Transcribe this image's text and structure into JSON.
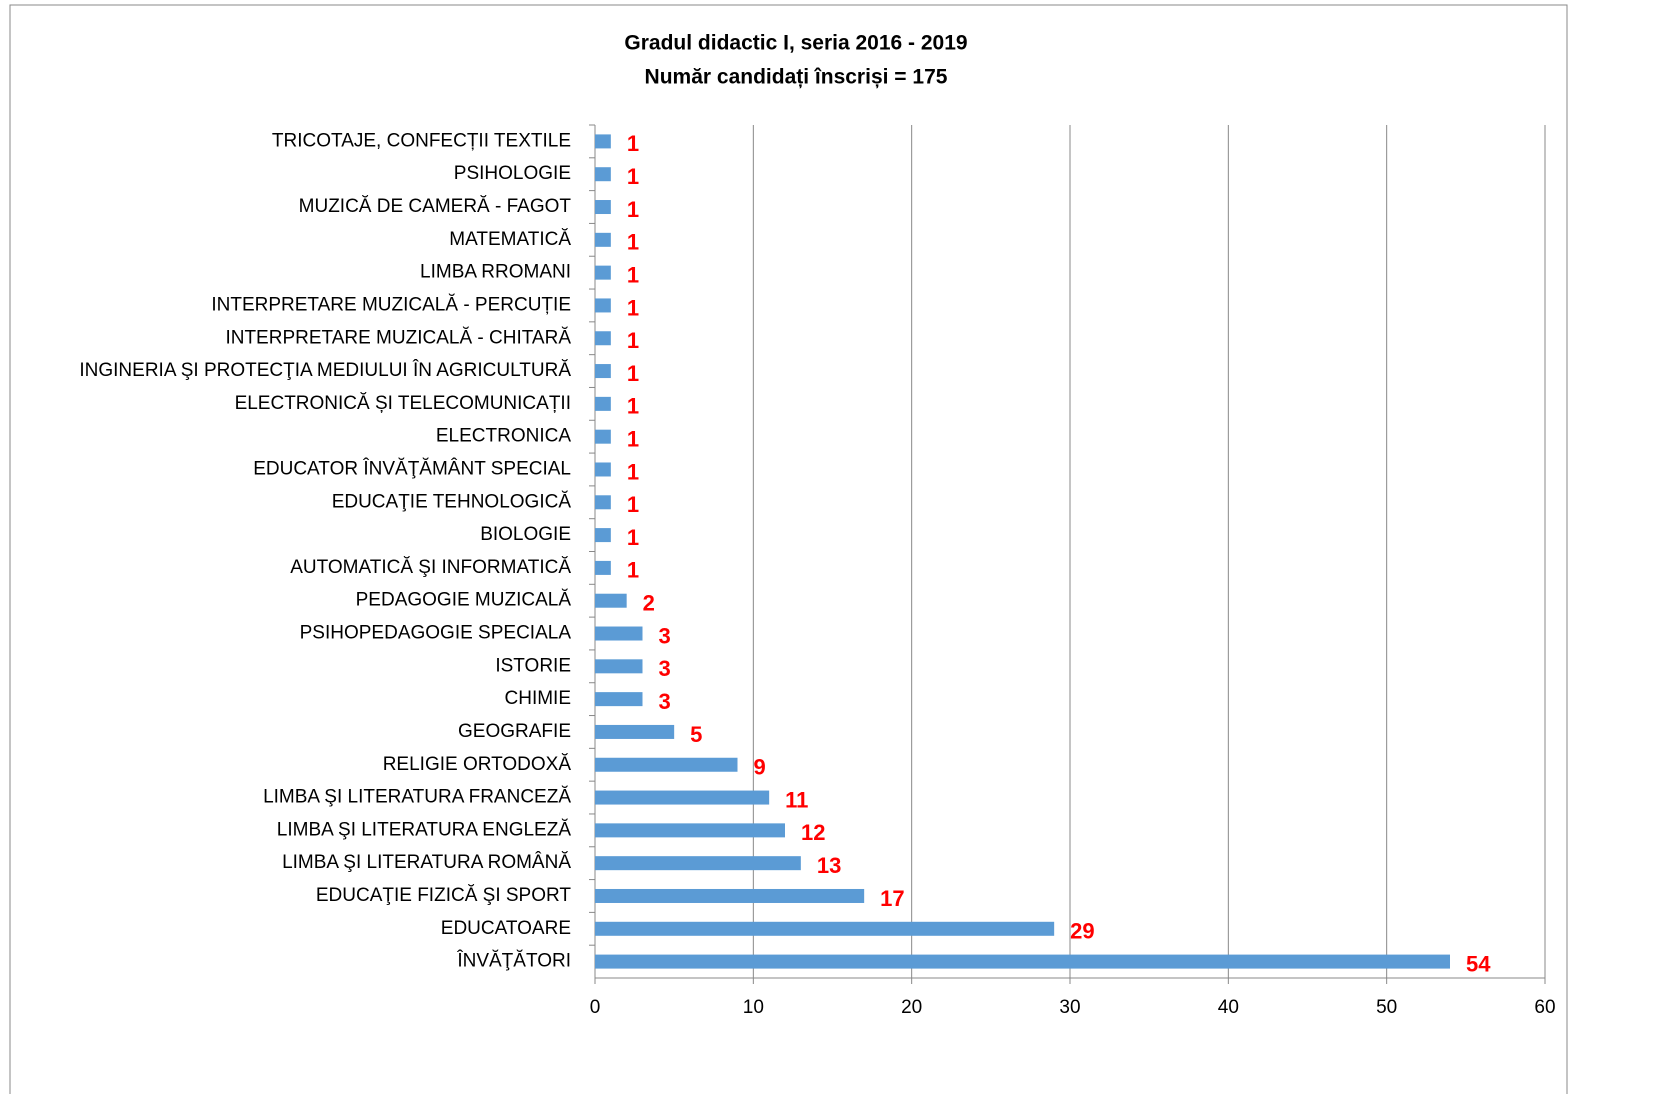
{
  "chart_data": {
    "type": "barh",
    "title": "Gradul didactic I, seria 2016 - 2019",
    "subtitle": "Număr candidați înscriși = 175",
    "categories": [
      "TRICOTAJE, CONFECȚII TEXTILE",
      "PSIHOLOGIE",
      "MUZICĂ DE CAMERĂ - FAGOT",
      "MATEMATICĂ",
      "LIMBA RROMANI",
      "INTERPRETARE MUZICALĂ - PERCUȚIE",
      "INTERPRETARE MUZICALĂ - CHITARĂ",
      "INGINERIA ŞI PROTECŢIA MEDIULUI ÎN AGRICULTURĂ",
      "ELECTRONICĂ ȘI TELECOMUNICAȚII",
      "ELECTRONICA",
      "EDUCATOR ÎNVĂŢĂMÂNT SPECIAL",
      "EDUCAŢIE TEHNOLOGICĂ",
      "BIOLOGIE",
      "AUTOMATICĂ ŞI INFORMATICĂ",
      "PEDAGOGIE MUZICALĂ",
      "PSIHOPEDAGOGIE SPECIALA",
      "ISTORIE",
      "CHIMIE",
      "GEOGRAFIE",
      "RELIGIE ORTODOXĂ",
      "LIMBA ŞI LITERATURA FRANCEZĂ",
      "LIMBA ŞI LITERATURA ENGLEZĂ",
      "LIMBA ŞI LITERATURA ROMÂNĂ",
      "EDUCAŢIE FIZICĂ ŞI SPORT",
      "EDUCATOARE",
      "ÎNVĂŢĂTORI"
    ],
    "values": [
      1,
      1,
      1,
      1,
      1,
      1,
      1,
      1,
      1,
      1,
      1,
      1,
      1,
      1,
      2,
      3,
      3,
      3,
      5,
      9,
      11,
      12,
      13,
      17,
      29,
      54
    ],
    "color": "#5b9bd5",
    "label_color": "#ff0000",
    "xlim": [
      0,
      60
    ],
    "xticks": [
      0,
      10,
      20,
      30,
      40,
      50,
      60
    ],
    "grid": true
  }
}
